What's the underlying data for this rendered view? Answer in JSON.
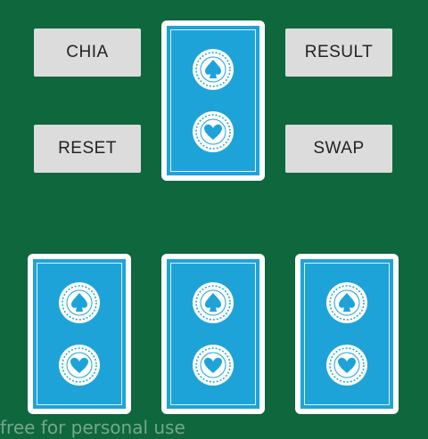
{
  "buttons": {
    "chia": "CHIA",
    "reset": "RESET",
    "result": "RESULT",
    "swap": "SWAP"
  },
  "cards": [
    {
      "id": "top",
      "face": "back"
    },
    {
      "id": "left",
      "face": "back"
    },
    {
      "id": "middle",
      "face": "back"
    },
    {
      "id": "right",
      "face": "back"
    }
  ],
  "watermark": "free for personal use",
  "colors": {
    "table": "#0f673d",
    "button": "#dcdcdc",
    "card_back": "#1ea3d9",
    "card_border": "#ffffff"
  },
  "icons": {
    "emblem_top": "spade-emblem-icon",
    "emblem_bottom": "heart-emblem-icon"
  }
}
